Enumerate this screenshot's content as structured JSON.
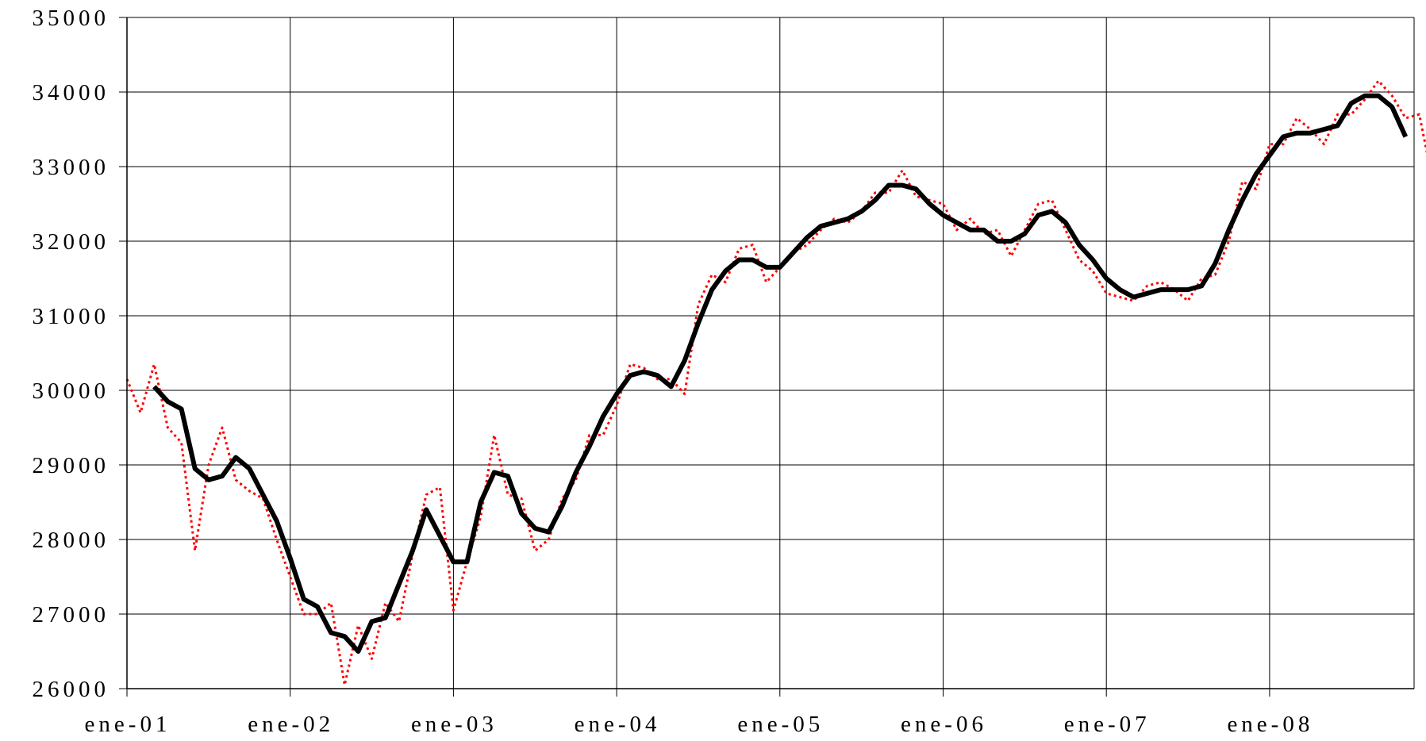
{
  "chart_data": {
    "type": "line",
    "title": "",
    "xlabel": "",
    "ylabel": "",
    "ylim": [
      26000,
      35000
    ],
    "yticks": [
      "35000",
      "34000",
      "33000",
      "32000",
      "31000",
      "30000",
      "29000",
      "28000",
      "27000",
      "26000"
    ],
    "xticks": [
      "ene-01",
      "ene-02",
      "ene-03",
      "ene-04",
      "ene-05",
      "ene-06",
      "ene-07",
      "ene-08"
    ],
    "grid": true,
    "legend": "none",
    "x_unit": "months since ene-01",
    "series": [
      {
        "style": "dotted",
        "color": "#ff0000",
        "points": [
          [
            0,
            30150
          ],
          [
            1,
            29700
          ],
          [
            2,
            30350
          ],
          [
            3,
            29500
          ],
          [
            4,
            29300
          ],
          [
            5,
            27850
          ],
          [
            6,
            29000
          ],
          [
            7,
            29500
          ],
          [
            8,
            28800
          ],
          [
            9,
            28650
          ],
          [
            10,
            28550
          ],
          [
            11,
            28000
          ],
          [
            12,
            27500
          ],
          [
            13,
            27000
          ],
          [
            14,
            27000
          ],
          [
            15,
            27150
          ],
          [
            16,
            26050
          ],
          [
            17,
            26850
          ],
          [
            18,
            26400
          ],
          [
            19,
            27150
          ],
          [
            20,
            26900
          ],
          [
            21,
            27800
          ],
          [
            22,
            28600
          ],
          [
            23,
            28700
          ],
          [
            24,
            27050
          ],
          [
            25,
            27700
          ],
          [
            26,
            28300
          ],
          [
            27,
            29400
          ],
          [
            28,
            28600
          ],
          [
            29,
            28550
          ],
          [
            30,
            27850
          ],
          [
            31,
            28000
          ],
          [
            32,
            28550
          ],
          [
            33,
            28800
          ],
          [
            34,
            29400
          ],
          [
            35,
            29400
          ],
          [
            36,
            29800
          ],
          [
            37,
            30350
          ],
          [
            38,
            30300
          ],
          [
            39,
            30150
          ],
          [
            40,
            30150
          ],
          [
            41,
            29950
          ],
          [
            42,
            31150
          ],
          [
            43,
            31550
          ],
          [
            44,
            31450
          ],
          [
            45,
            31900
          ],
          [
            46,
            31950
          ],
          [
            47,
            31450
          ],
          [
            48,
            31650
          ],
          [
            49,
            31850
          ],
          [
            50,
            31950
          ],
          [
            51,
            32150
          ],
          [
            52,
            32300
          ],
          [
            53,
            32250
          ],
          [
            54,
            32400
          ],
          [
            55,
            32650
          ],
          [
            56,
            32650
          ],
          [
            57,
            32950
          ],
          [
            58,
            32600
          ],
          [
            59,
            32550
          ],
          [
            60,
            32500
          ],
          [
            61,
            32150
          ],
          [
            62,
            32300
          ],
          [
            63,
            32100
          ],
          [
            64,
            32150
          ],
          [
            65,
            31800
          ],
          [
            66,
            32150
          ],
          [
            67,
            32500
          ],
          [
            68,
            32550
          ],
          [
            69,
            32150
          ],
          [
            70,
            31750
          ],
          [
            71,
            31600
          ],
          [
            72,
            31300
          ],
          [
            73,
            31250
          ],
          [
            74,
            31200
          ],
          [
            75,
            31400
          ],
          [
            76,
            31450
          ],
          [
            77,
            31350
          ],
          [
            78,
            31200
          ],
          [
            79,
            31500
          ],
          [
            80,
            31550
          ],
          [
            81,
            32000
          ],
          [
            82,
            32800
          ],
          [
            83,
            32700
          ],
          [
            84,
            33300
          ],
          [
            85,
            33300
          ],
          [
            86,
            33650
          ],
          [
            87,
            33500
          ],
          [
            88,
            33300
          ],
          [
            89,
            33700
          ],
          [
            90,
            33700
          ],
          [
            91,
            33900
          ],
          [
            92,
            34150
          ],
          [
            93,
            33950
          ],
          [
            94,
            33650
          ],
          [
            95,
            33700
          ],
          [
            96,
            32800
          ]
        ]
      },
      {
        "style": "solid",
        "color": "#000000",
        "points": [
          [
            2,
            30050
          ],
          [
            3,
            29850
          ],
          [
            4,
            29750
          ],
          [
            5,
            28950
          ],
          [
            6,
            28800
          ],
          [
            7,
            28850
          ],
          [
            8,
            29100
          ],
          [
            9,
            28950
          ],
          [
            10,
            28600
          ],
          [
            11,
            28250
          ],
          [
            12,
            27750
          ],
          [
            13,
            27200
          ],
          [
            14,
            27100
          ],
          [
            15,
            26750
          ],
          [
            16,
            26700
          ],
          [
            17,
            26500
          ],
          [
            18,
            26900
          ],
          [
            19,
            26950
          ],
          [
            20,
            27400
          ],
          [
            21,
            27850
          ],
          [
            22,
            28400
          ],
          [
            23,
            28050
          ],
          [
            24,
            27700
          ],
          [
            25,
            27700
          ],
          [
            26,
            28500
          ],
          [
            27,
            28900
          ],
          [
            28,
            28850
          ],
          [
            29,
            28350
          ],
          [
            30,
            28150
          ],
          [
            31,
            28100
          ],
          [
            32,
            28450
          ],
          [
            33,
            28900
          ],
          [
            34,
            29250
          ],
          [
            35,
            29650
          ],
          [
            36,
            29950
          ],
          [
            37,
            30200
          ],
          [
            38,
            30250
          ],
          [
            39,
            30200
          ],
          [
            40,
            30050
          ],
          [
            41,
            30400
          ],
          [
            42,
            30900
          ],
          [
            43,
            31350
          ],
          [
            44,
            31600
          ],
          [
            45,
            31750
          ],
          [
            46,
            31750
          ],
          [
            47,
            31650
          ],
          [
            48,
            31650
          ],
          [
            49,
            31850
          ],
          [
            50,
            32050
          ],
          [
            51,
            32200
          ],
          [
            52,
            32250
          ],
          [
            53,
            32300
          ],
          [
            54,
            32400
          ],
          [
            55,
            32550
          ],
          [
            56,
            32750
          ],
          [
            57,
            32750
          ],
          [
            58,
            32700
          ],
          [
            59,
            32500
          ],
          [
            60,
            32350
          ],
          [
            61,
            32250
          ],
          [
            62,
            32150
          ],
          [
            63,
            32150
          ],
          [
            64,
            32000
          ],
          [
            65,
            32000
          ],
          [
            66,
            32100
          ],
          [
            67,
            32350
          ],
          [
            68,
            32400
          ],
          [
            69,
            32250
          ],
          [
            70,
            31950
          ],
          [
            71,
            31750
          ],
          [
            72,
            31500
          ],
          [
            73,
            31350
          ],
          [
            74,
            31250
          ],
          [
            75,
            31300
          ],
          [
            76,
            31350
          ],
          [
            77,
            31350
          ],
          [
            78,
            31350
          ],
          [
            79,
            31400
          ],
          [
            80,
            31700
          ],
          [
            81,
            32150
          ],
          [
            82,
            32550
          ],
          [
            83,
            32900
          ],
          [
            84,
            33150
          ],
          [
            85,
            33400
          ],
          [
            86,
            33450
          ],
          [
            87,
            33450
          ],
          [
            88,
            33500
          ],
          [
            89,
            33550
          ],
          [
            90,
            33850
          ],
          [
            91,
            33950
          ],
          [
            92,
            33950
          ],
          [
            93,
            33800
          ],
          [
            94,
            33400
          ]
        ]
      }
    ]
  }
}
